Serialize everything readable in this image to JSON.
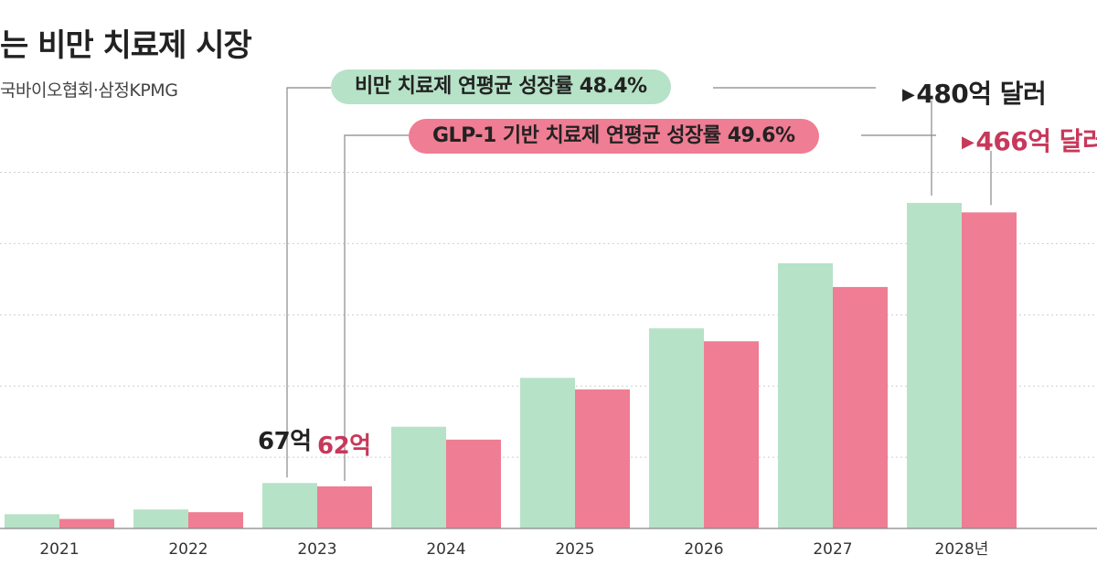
{
  "title": "는 비만 치료제 시장",
  "source": "국바이오협회·삼정KPMG",
  "chart_data": {
    "type": "bar",
    "title": "는 비만 치료제 시장",
    "categories": [
      "2021",
      "2022",
      "2023",
      "2024",
      "2025",
      "2026",
      "2027",
      "2028년"
    ],
    "series": [
      {
        "name": "비만 치료제",
        "color": "#b6e2c7",
        "values": [
          21,
          28,
          67,
          150,
          222,
          295,
          391,
          480
        ]
      },
      {
        "name": "GLP-1 기반 치료제",
        "color": "#ef7d93",
        "values": [
          14,
          24,
          62,
          131,
          205,
          276,
          356,
          466
        ]
      }
    ],
    "ylim": [
      0,
      550
    ],
    "grid": true,
    "annotations": {
      "green_growth": "비만 치료제 연평균 성장률 48.4%",
      "red_growth": "GLP-1 기반 치료제 연평균 성장률 49.6%",
      "green_2023": "67억",
      "red_2023": "62억",
      "green_2028": "480억 달러",
      "red_2028": "466억 달러"
    }
  }
}
